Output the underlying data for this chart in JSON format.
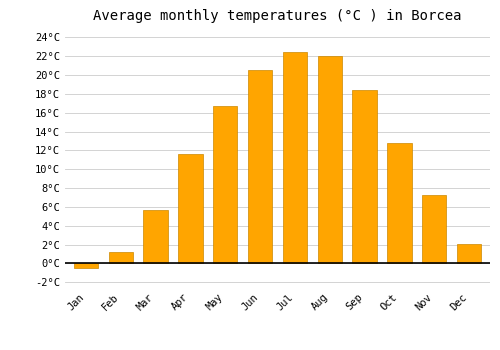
{
  "months": [
    "Jan",
    "Feb",
    "Mar",
    "Apr",
    "May",
    "Jun",
    "Jul",
    "Aug",
    "Sep",
    "Oct",
    "Nov",
    "Dec"
  ],
  "temperatures": [
    -0.5,
    1.2,
    5.7,
    11.6,
    16.7,
    20.5,
    22.5,
    22.0,
    18.4,
    12.8,
    7.3,
    2.1
  ],
  "bar_color": "#FFA500",
  "bar_edge_color": "#CC8800",
  "title": "Average monthly temperatures (°C ) in Borcea",
  "title_fontsize": 10,
  "ylim": [
    -2.5,
    25
  ],
  "yticks": [
    -2,
    0,
    2,
    4,
    6,
    8,
    10,
    12,
    14,
    16,
    18,
    20,
    22,
    24
  ],
  "ytick_labels": [
    "-2°C",
    "0°C",
    "2°C",
    "4°C",
    "6°C",
    "8°C",
    "10°C",
    "12°C",
    "14°C",
    "16°C",
    "18°C",
    "20°C",
    "22°C",
    "24°C"
  ],
  "background_color": "#ffffff",
  "grid_color": "#cccccc",
  "font_family": "monospace",
  "tick_fontsize": 7.5,
  "bar_width": 0.7
}
